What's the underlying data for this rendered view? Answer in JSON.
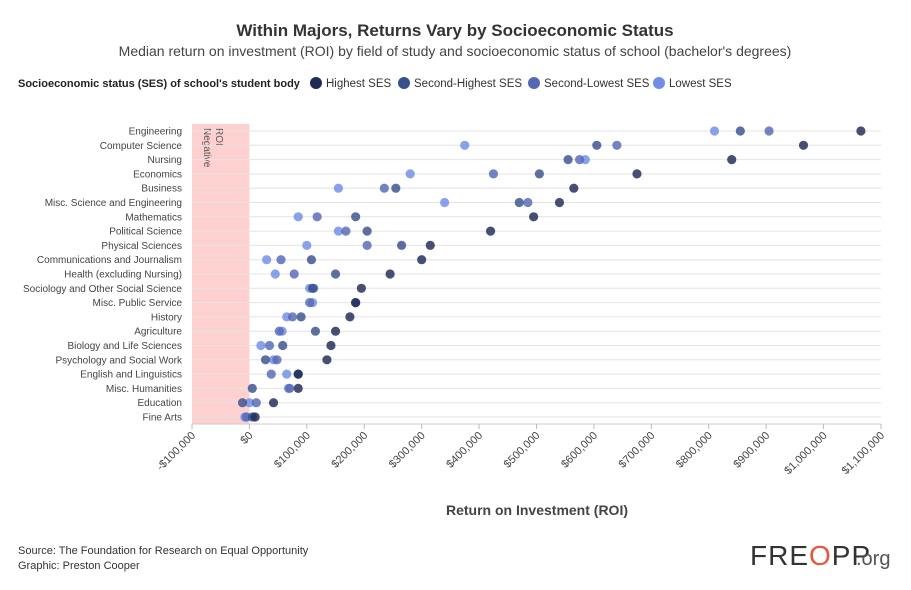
{
  "chart_data": {
    "type": "scatter",
    "title": "Within Majors, Returns Vary by Socioeconomic Status",
    "subtitle": "Median return on investment (ROI) by field of study and socioeconomic status of school (bachelor's degrees)",
    "legend_title": "Socioeconomic status (SES) of school's student body",
    "xlabel": "Return on Investment (ROI)",
    "ylabel": "",
    "xlim": [
      -100000,
      1100000
    ],
    "x_ticks": [
      -100000,
      0,
      100000,
      200000,
      300000,
      400000,
      500000,
      600000,
      700000,
      800000,
      900000,
      1000000,
      1100000
    ],
    "x_tick_labels": [
      "-$100,000",
      "$0",
      "$100,000",
      "$200,000",
      "$300,000",
      "$400,000",
      "$500,000",
      "$600,000",
      "$700,000",
      "$800,000",
      "$900,000",
      "$1,000,000",
      "$1,100,000"
    ],
    "negative_region_label": [
      "Negative",
      "ROI"
    ],
    "categories": [
      "Engineering",
      "Computer Science",
      "Nursing",
      "Economics",
      "Business",
      "Misc. Science and Engineering",
      "Mathematics",
      "Political Science",
      "Physical Sciences",
      "Communications and Journalism",
      "Health (excluding Nursing)",
      "Sociology and Other Social Science",
      "Misc. Public Service",
      "History",
      "Agriculture",
      "Biology and Life Sciences",
      "Psychology and Social Work",
      "English and Linguistics",
      "Misc. Humanities",
      "Education",
      "Fine Arts"
    ],
    "series": [
      {
        "name": "Highest SES",
        "color": "#1f2a55",
        "values": [
          1065000,
          965000,
          840000,
          675000,
          565000,
          540000,
          495000,
          420000,
          315000,
          300000,
          245000,
          195000,
          185000,
          175000,
          150000,
          142000,
          135000,
          85000,
          85000,
          42000,
          10000
        ]
      },
      {
        "name": "Second-Highest SES",
        "color": "#39508e",
        "values": [
          855000,
          605000,
          555000,
          505000,
          255000,
          470000,
          185000,
          205000,
          265000,
          108000,
          150000,
          110000,
          185000,
          90000,
          115000,
          58000,
          28000,
          85000,
          5000,
          -12000,
          5000
        ]
      },
      {
        "name": "Second-Lowest SES",
        "color": "#5468b6",
        "values": [
          905000,
          640000,
          575000,
          425000,
          235000,
          485000,
          118000,
          168000,
          205000,
          55000,
          78000,
          112000,
          105000,
          75000,
          52000,
          35000,
          48000,
          38000,
          70000,
          12000,
          -5000
        ]
      },
      {
        "name": "Lowest SES",
        "color": "#6f8ee6",
        "values": [
          810000,
          375000,
          585000,
          280000,
          155000,
          340000,
          85000,
          155000,
          100000,
          30000,
          45000,
          105000,
          110000,
          65000,
          57000,
          20000,
          42000,
          65000,
          68000,
          0,
          -8000
        ]
      }
    ]
  },
  "footer": {
    "source": "Source: The Foundation for Research on Equal Opportunity",
    "graphic": "Graphic: Preston Cooper"
  },
  "logo": {
    "main_a": "FRE",
    "main_b": "PP",
    "suffix": ".org"
  }
}
